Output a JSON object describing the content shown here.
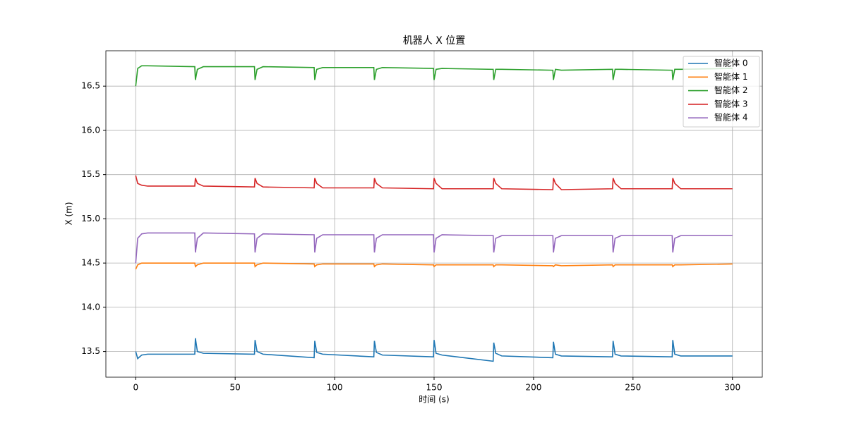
{
  "chart_data": {
    "type": "line",
    "title": "机器人 X 位置",
    "x_label": "时间 (s)",
    "y_label": "X (m)",
    "x": [
      0,
      1,
      3,
      6,
      29.7,
      30,
      31,
      34,
      59.7,
      60,
      61,
      64,
      89.7,
      90,
      91,
      94,
      119.7,
      120,
      121,
      124,
      149.7,
      150,
      151,
      154,
      179.7,
      180,
      181,
      184,
      209.7,
      210,
      211,
      214,
      239.7,
      240,
      241,
      244,
      269.7,
      270,
      271,
      274,
      300
    ],
    "series": [
      {
        "name": "智能体 0",
        "color": "#1f77b4",
        "values": [
          13.5,
          13.42,
          13.46,
          13.47,
          13.47,
          13.65,
          13.5,
          13.48,
          13.47,
          13.63,
          13.5,
          13.47,
          13.43,
          13.62,
          13.49,
          13.47,
          13.44,
          13.62,
          13.49,
          13.46,
          13.44,
          13.63,
          13.48,
          13.46,
          13.39,
          13.6,
          13.48,
          13.45,
          13.43,
          13.61,
          13.47,
          13.45,
          13.44,
          13.62,
          13.47,
          13.45,
          13.44,
          13.63,
          13.47,
          13.45,
          13.45
        ]
      },
      {
        "name": "智能体 1",
        "color": "#ff7f0e",
        "values": [
          14.43,
          14.48,
          14.5,
          14.5,
          14.5,
          14.46,
          14.48,
          14.5,
          14.5,
          14.46,
          14.48,
          14.5,
          14.49,
          14.46,
          14.48,
          14.49,
          14.49,
          14.46,
          14.48,
          14.49,
          14.48,
          14.46,
          14.48,
          14.48,
          14.48,
          14.46,
          14.48,
          14.48,
          14.47,
          14.46,
          14.48,
          14.47,
          14.48,
          14.46,
          14.48,
          14.48,
          14.48,
          14.46,
          14.48,
          14.48,
          14.49
        ]
      },
      {
        "name": "智能体 2",
        "color": "#2ca02c",
        "values": [
          16.5,
          16.7,
          16.73,
          16.73,
          16.72,
          16.57,
          16.69,
          16.72,
          16.72,
          16.57,
          16.69,
          16.72,
          16.71,
          16.57,
          16.69,
          16.71,
          16.71,
          16.57,
          16.69,
          16.71,
          16.7,
          16.57,
          16.69,
          16.7,
          16.69,
          16.57,
          16.69,
          16.69,
          16.68,
          16.57,
          16.69,
          16.68,
          16.69,
          16.57,
          16.69,
          16.69,
          16.68,
          16.57,
          16.69,
          16.69,
          16.7
        ]
      },
      {
        "name": "智能体 3",
        "color": "#d62728",
        "values": [
          15.49,
          15.4,
          15.38,
          15.37,
          15.37,
          15.46,
          15.4,
          15.37,
          15.36,
          15.46,
          15.4,
          15.36,
          15.35,
          15.46,
          15.4,
          15.35,
          15.35,
          15.46,
          15.4,
          15.35,
          15.34,
          15.46,
          15.4,
          15.34,
          15.34,
          15.46,
          15.4,
          15.34,
          15.33,
          15.46,
          15.4,
          15.33,
          15.34,
          15.46,
          15.4,
          15.34,
          15.34,
          15.46,
          15.4,
          15.34,
          15.34
        ]
      },
      {
        "name": "智能体 4",
        "color": "#9467bd",
        "values": [
          14.5,
          14.78,
          14.83,
          14.84,
          14.84,
          14.62,
          14.78,
          14.84,
          14.83,
          14.62,
          14.78,
          14.83,
          14.82,
          14.62,
          14.78,
          14.82,
          14.82,
          14.62,
          14.78,
          14.82,
          14.82,
          14.62,
          14.78,
          14.82,
          14.81,
          14.62,
          14.78,
          14.81,
          14.81,
          14.62,
          14.78,
          14.81,
          14.81,
          14.62,
          14.78,
          14.81,
          14.81,
          14.62,
          14.78,
          14.81,
          14.81
        ]
      }
    ],
    "xlim": [
      -15,
      315
    ],
    "ylim": [
      13.21,
      16.9
    ],
    "xticks": [
      0,
      50,
      100,
      150,
      200,
      250,
      300
    ],
    "yticks": [
      13.5,
      {
        "value": 14,
        "label": "14.0"
      },
      14.5,
      {
        "value": 15,
        "label": "15.0"
      },
      15.5,
      {
        "value": 16,
        "label": "16.0"
      },
      16.5
    ],
    "grid": true,
    "legend": "upper right"
  }
}
